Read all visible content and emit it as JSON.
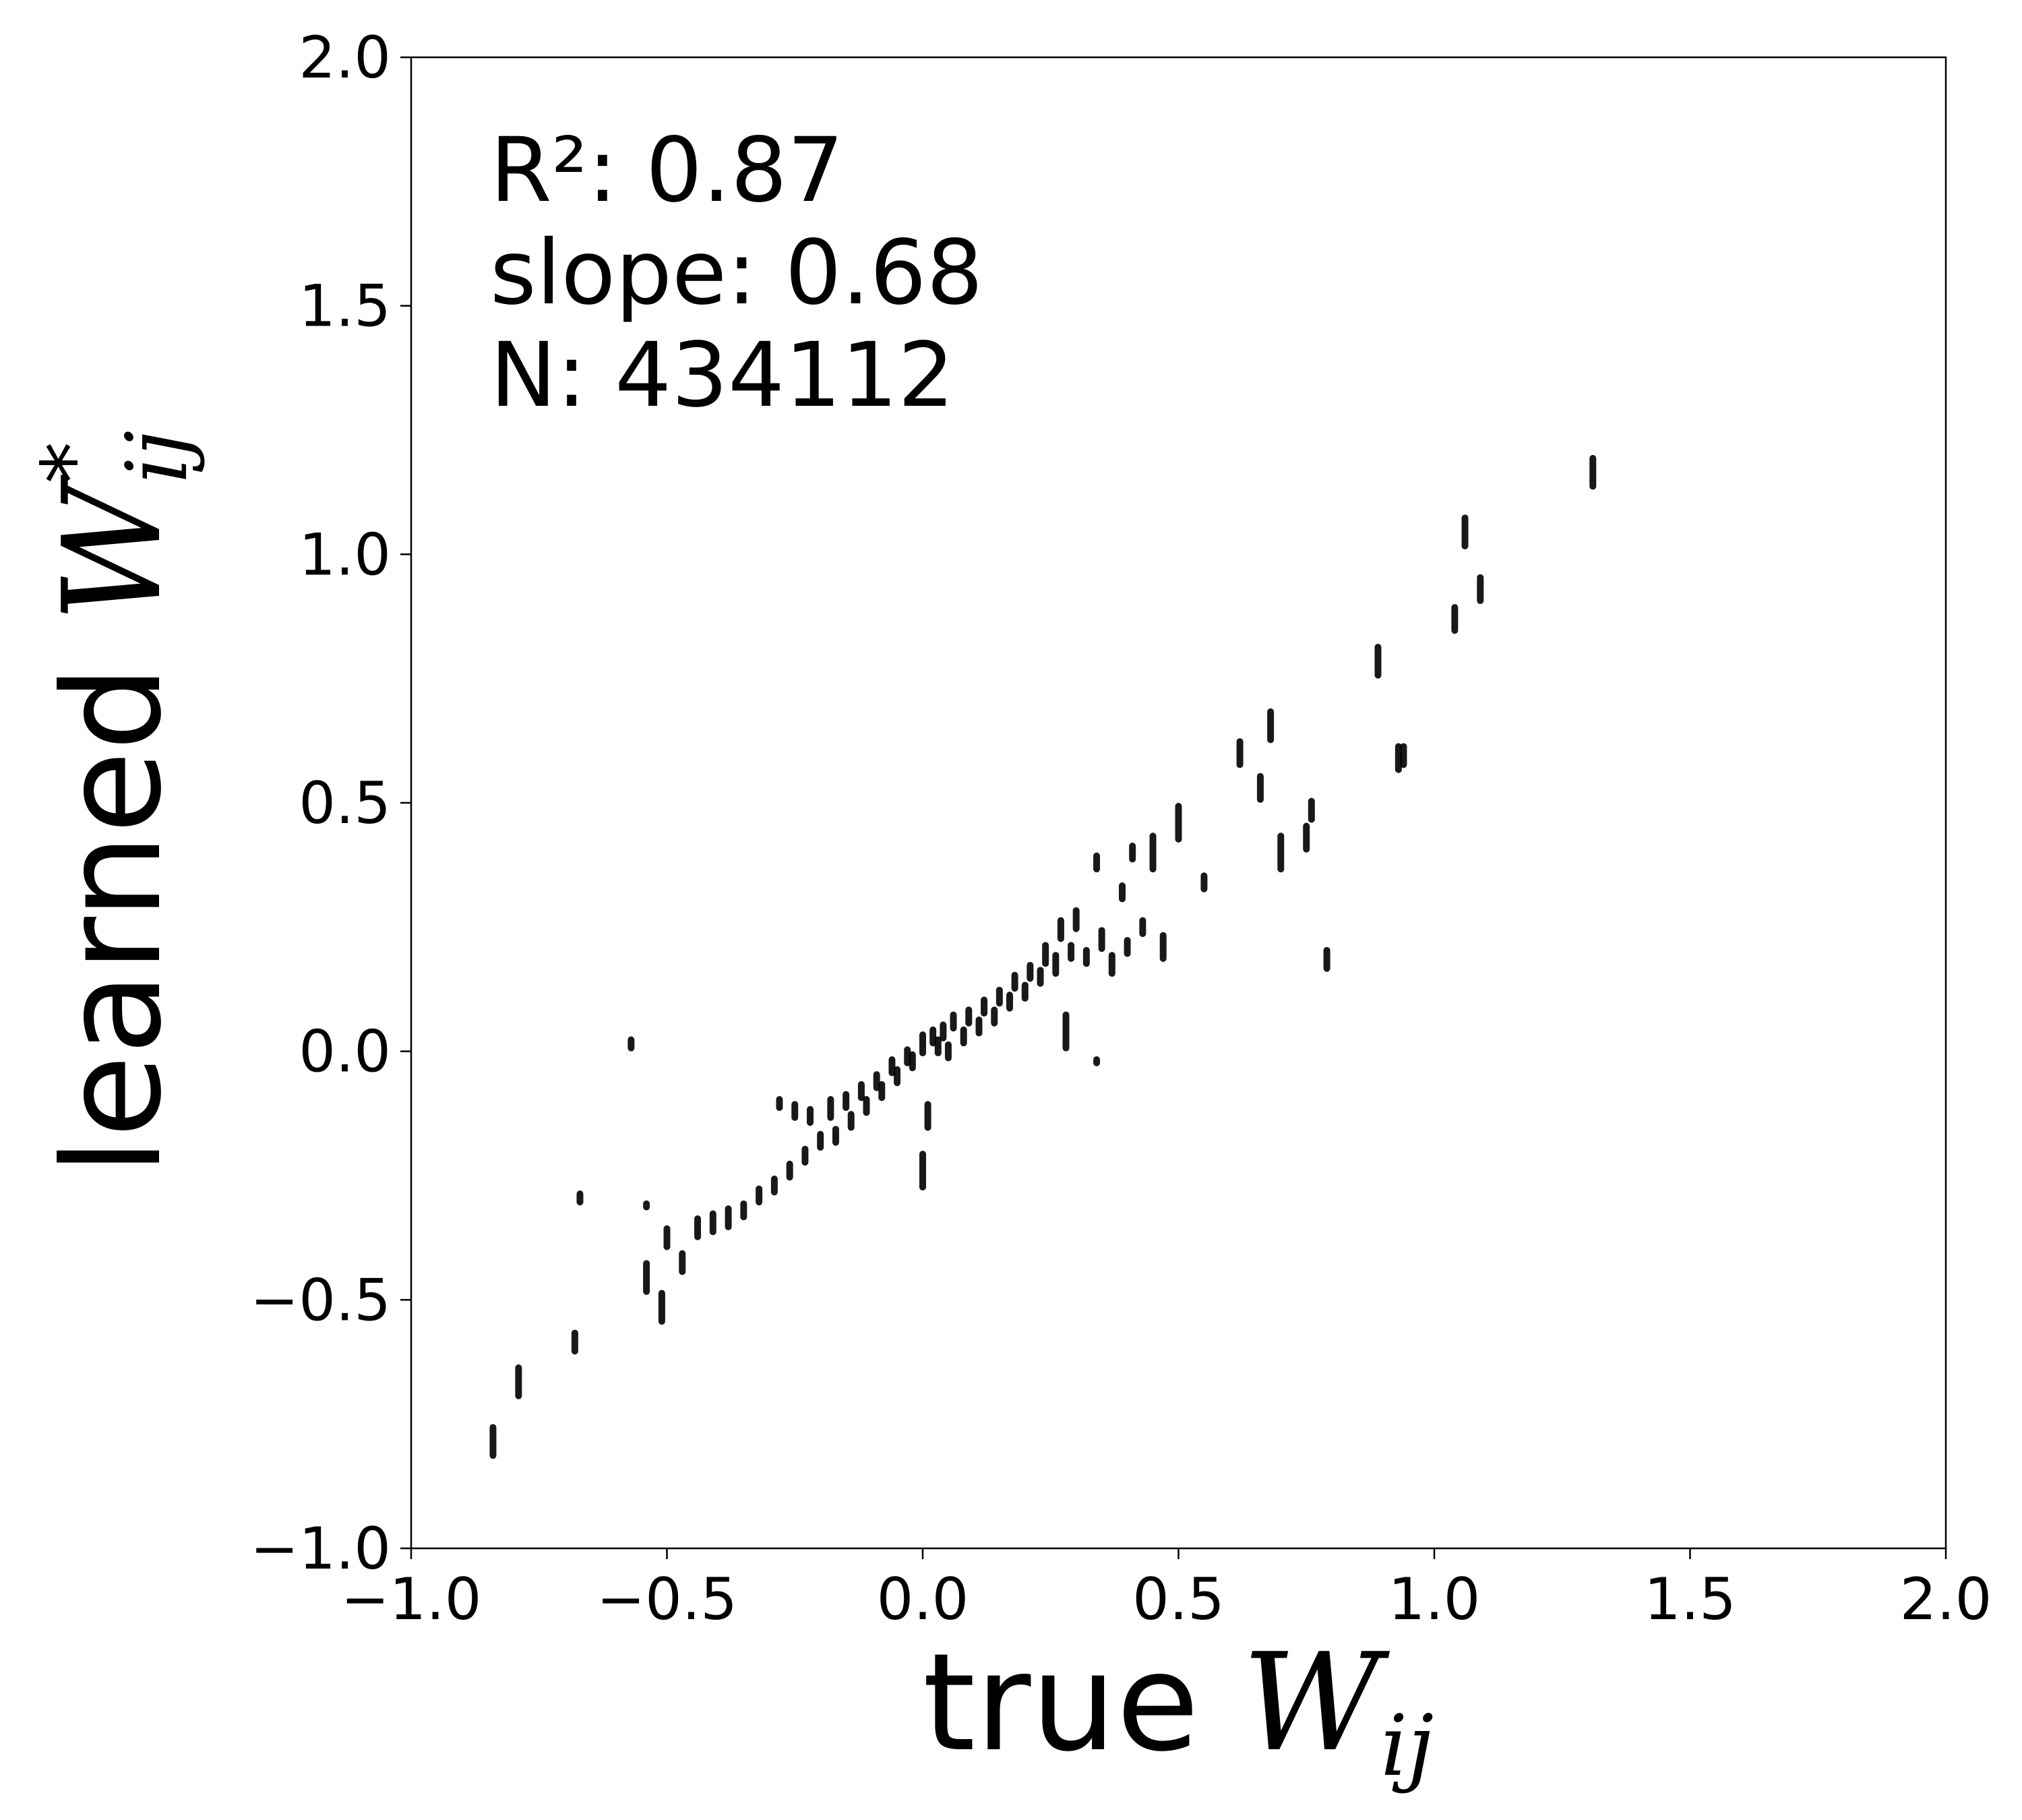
{
  "chart_data": {
    "type": "scatter",
    "xlabel": {
      "text": "true",
      "symbol": "W",
      "subscript": "ij"
    },
    "ylabel": {
      "text": "learned",
      "symbol": "W",
      "subscript": "ij",
      "superscript": "*"
    },
    "xlim": [
      -1.0,
      2.0
    ],
    "ylim": [
      -1.0,
      2.0
    ],
    "x_ticks": [
      -1.0,
      -0.5,
      0.0,
      0.5,
      1.0,
      1.5,
      2.0
    ],
    "y_ticks": [
      -1.0,
      -0.5,
      0.0,
      0.5,
      1.0,
      1.5,
      2.0
    ],
    "x_tick_labels": [
      "−1.0",
      "−0.5",
      "0.0",
      "0.5",
      "1.0",
      "1.5",
      "2.0"
    ],
    "y_tick_labels": [
      "−1.0",
      "−0.5",
      "0.0",
      "0.5",
      "1.0",
      "1.5",
      "2.0"
    ],
    "grid": false,
    "marker_color": "#000000",
    "annotations": [
      "R²: 0.87",
      "slope: 0.68",
      "N: 434112"
    ],
    "clusters": [
      {
        "x": -0.84,
        "y_min": -0.82,
        "y_max": -0.75
      },
      {
        "x": -0.79,
        "y_min": -0.7,
        "y_max": -0.63
      },
      {
        "x": -0.68,
        "y_min": -0.61,
        "y_max": -0.56
      },
      {
        "x": -0.67,
        "y_min": -0.31,
        "y_max": -0.28
      },
      {
        "x": -0.57,
        "y_min": 0.0,
        "y_max": 0.03
      },
      {
        "x": -0.54,
        "y_min": -0.49,
        "y_max": -0.42
      },
      {
        "x": -0.54,
        "y_min": -0.32,
        "y_max": -0.3
      },
      {
        "x": -0.51,
        "y_min": -0.55,
        "y_max": -0.48
      },
      {
        "x": -0.5,
        "y_min": -0.4,
        "y_max": -0.35
      },
      {
        "x": -0.47,
        "y_min": -0.45,
        "y_max": -0.4
      },
      {
        "x": -0.44,
        "y_min": -0.38,
        "y_max": -0.33
      },
      {
        "x": -0.41,
        "y_min": -0.37,
        "y_max": -0.32
      },
      {
        "x": -0.38,
        "y_min": -0.36,
        "y_max": -0.31
      },
      {
        "x": -0.35,
        "y_min": -0.34,
        "y_max": -0.3
      },
      {
        "x": -0.32,
        "y_min": -0.31,
        "y_max": -0.27
      },
      {
        "x": -0.29,
        "y_min": -0.29,
        "y_max": -0.25
      },
      {
        "x": -0.28,
        "y_min": -0.12,
        "y_max": -0.09
      },
      {
        "x": -0.26,
        "y_min": -0.26,
        "y_max": -0.22
      },
      {
        "x": -0.25,
        "y_min": -0.14,
        "y_max": -0.1
      },
      {
        "x": -0.23,
        "y_min": -0.23,
        "y_max": -0.19
      },
      {
        "x": -0.22,
        "y_min": -0.15,
        "y_max": -0.11
      },
      {
        "x": -0.2,
        "y_min": -0.2,
        "y_max": -0.16
      },
      {
        "x": -0.18,
        "y_min": -0.14,
        "y_max": -0.09
      },
      {
        "x": -0.17,
        "y_min": -0.19,
        "y_max": -0.15
      },
      {
        "x": -0.15,
        "y_min": -0.12,
        "y_max": -0.08
      },
      {
        "x": -0.14,
        "y_min": -0.16,
        "y_max": -0.12
      },
      {
        "x": -0.12,
        "y_min": -0.1,
        "y_max": -0.06
      },
      {
        "x": -0.11,
        "y_min": -0.13,
        "y_max": -0.09
      },
      {
        "x": -0.09,
        "y_min": -0.08,
        "y_max": -0.04
      },
      {
        "x": -0.08,
        "y_min": -0.1,
        "y_max": -0.06
      },
      {
        "x": -0.06,
        "y_min": -0.05,
        "y_max": -0.01
      },
      {
        "x": -0.05,
        "y_min": -0.07,
        "y_max": -0.03
      },
      {
        "x": -0.03,
        "y_min": -0.03,
        "y_max": 0.01
      },
      {
        "x": -0.02,
        "y_min": -0.04,
        "y_max": 0.0
      },
      {
        "x": 0.0,
        "y_min": -0.01,
        "y_max": 0.04
      },
      {
        "x": 0.0,
        "y_min": -0.28,
        "y_max": -0.2
      },
      {
        "x": 0.01,
        "y_min": -0.16,
        "y_max": -0.1
      },
      {
        "x": 0.02,
        "y_min": 0.01,
        "y_max": 0.05
      },
      {
        "x": 0.03,
        "y_min": -0.01,
        "y_max": 0.03
      },
      {
        "x": 0.04,
        "y_min": 0.02,
        "y_max": 0.06
      },
      {
        "x": 0.05,
        "y_min": -0.02,
        "y_max": 0.02
      },
      {
        "x": 0.06,
        "y_min": 0.04,
        "y_max": 0.08
      },
      {
        "x": 0.08,
        "y_min": 0.01,
        "y_max": 0.05
      },
      {
        "x": 0.09,
        "y_min": 0.05,
        "y_max": 0.09
      },
      {
        "x": 0.11,
        "y_min": 0.03,
        "y_max": 0.07
      },
      {
        "x": 0.12,
        "y_min": 0.07,
        "y_max": 0.11
      },
      {
        "x": 0.14,
        "y_min": 0.05,
        "y_max": 0.09
      },
      {
        "x": 0.15,
        "y_min": 0.09,
        "y_max": 0.13
      },
      {
        "x": 0.17,
        "y_min": 0.08,
        "y_max": 0.12
      },
      {
        "x": 0.18,
        "y_min": 0.12,
        "y_max": 0.16
      },
      {
        "x": 0.2,
        "y_min": 0.1,
        "y_max": 0.14
      },
      {
        "x": 0.21,
        "y_min": 0.14,
        "y_max": 0.18
      },
      {
        "x": 0.23,
        "y_min": 0.13,
        "y_max": 0.17
      },
      {
        "x": 0.24,
        "y_min": 0.17,
        "y_max": 0.22
      },
      {
        "x": 0.26,
        "y_min": 0.15,
        "y_max": 0.2
      },
      {
        "x": 0.27,
        "y_min": 0.22,
        "y_max": 0.27
      },
      {
        "x": 0.28,
        "y_min": 0.0,
        "y_max": 0.08
      },
      {
        "x": 0.29,
        "y_min": 0.18,
        "y_max": 0.22
      },
      {
        "x": 0.3,
        "y_min": 0.24,
        "y_max": 0.29
      },
      {
        "x": 0.32,
        "y_min": 0.17,
        "y_max": 0.21
      },
      {
        "x": 0.34,
        "y_min": 0.36,
        "y_max": 0.4
      },
      {
        "x": 0.34,
        "y_min": -0.03,
        "y_max": -0.01
      },
      {
        "x": 0.35,
        "y_min": 0.2,
        "y_max": 0.25
      },
      {
        "x": 0.37,
        "y_min": 0.15,
        "y_max": 0.2
      },
      {
        "x": 0.39,
        "y_min": 0.3,
        "y_max": 0.34
      },
      {
        "x": 0.4,
        "y_min": 0.19,
        "y_max": 0.23
      },
      {
        "x": 0.41,
        "y_min": 0.38,
        "y_max": 0.42
      },
      {
        "x": 0.43,
        "y_min": 0.23,
        "y_max": 0.27
      },
      {
        "x": 0.45,
        "y_min": 0.36,
        "y_max": 0.44
      },
      {
        "x": 0.47,
        "y_min": 0.18,
        "y_max": 0.24
      },
      {
        "x": 0.5,
        "y_min": 0.42,
        "y_max": 0.5
      },
      {
        "x": 0.55,
        "y_min": 0.32,
        "y_max": 0.36
      },
      {
        "x": 0.62,
        "y_min": 0.57,
        "y_max": 0.63
      },
      {
        "x": 0.66,
        "y_min": 0.5,
        "y_max": 0.56
      },
      {
        "x": 0.68,
        "y_min": 0.62,
        "y_max": 0.69
      },
      {
        "x": 0.7,
        "y_min": 0.36,
        "y_max": 0.44
      },
      {
        "x": 0.75,
        "y_min": 0.4,
        "y_max": 0.46
      },
      {
        "x": 0.76,
        "y_min": 0.46,
        "y_max": 0.51
      },
      {
        "x": 0.79,
        "y_min": 0.16,
        "y_max": 0.21
      },
      {
        "x": 0.89,
        "y_min": 0.75,
        "y_max": 0.82
      },
      {
        "x": 0.93,
        "y_min": 0.56,
        "y_max": 0.62
      },
      {
        "x": 0.94,
        "y_min": 0.57,
        "y_max": 0.62
      },
      {
        "x": 1.04,
        "y_min": 0.84,
        "y_max": 0.9
      },
      {
        "x": 1.06,
        "y_min": 1.01,
        "y_max": 1.08
      },
      {
        "x": 1.09,
        "y_min": 0.9,
        "y_max": 0.96
      },
      {
        "x": 1.31,
        "y_min": 1.13,
        "y_max": 1.2
      }
    ]
  }
}
